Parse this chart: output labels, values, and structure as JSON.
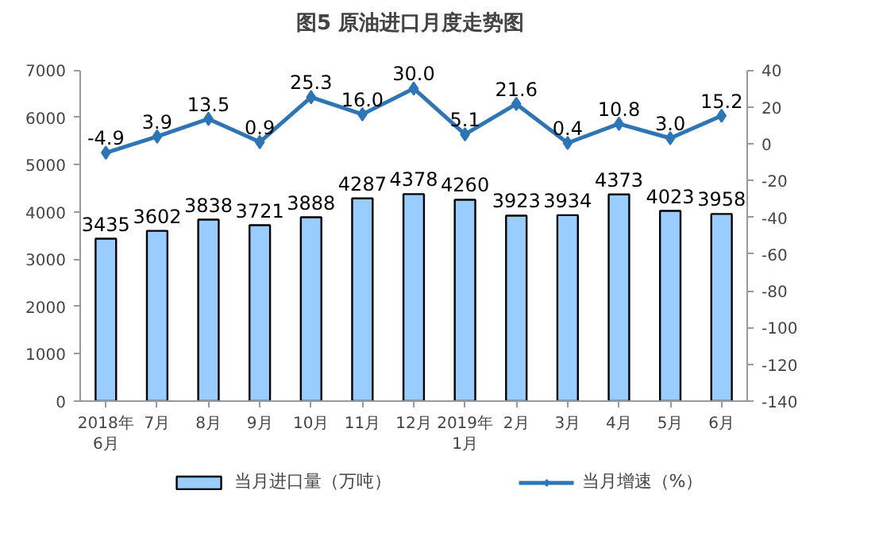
{
  "chart_data": {
    "type": "bar",
    "title": "图5  原油进口月度走势图",
    "categories": [
      "2018年\n6月",
      "7月",
      "8月",
      "9月",
      "10月",
      "11月",
      "12月",
      "2019年\n1月",
      "2月",
      "3月",
      "4月",
      "5月",
      "6月"
    ],
    "series": [
      {
        "name": "当月进口量（万吨）",
        "color": "#99ccff",
        "values": [
          3435,
          3602,
          3838,
          3721,
          3888,
          4287,
          4378,
          4260,
          3923,
          3934,
          4373,
          4023,
          3958
        ]
      },
      {
        "name": "当月增速（%）",
        "type": "line",
        "axis": "y2",
        "color": "#2e75b6",
        "marker": "diamond",
        "values": [
          -4.9,
          3.9,
          13.5,
          0.9,
          25.3,
          16.0,
          30.0,
          5.1,
          21.6,
          0.4,
          10.8,
          3.0,
          15.2
        ],
        "value_labels": [
          "-4.9",
          "3.9",
          "13.5",
          "0.9",
          "25.3",
          "16.0",
          "30.0",
          "5.1",
          "21.6",
          "0.4",
          "10.8",
          "3.0",
          "15.2"
        ]
      }
    ],
    "ylim": [
      0,
      7000
    ],
    "yticks": [
      0,
      1000,
      2000,
      3000,
      4000,
      5000,
      6000,
      7000
    ],
    "y2lim": [
      -140,
      40
    ],
    "y2ticks": [
      -140,
      -120,
      -100,
      -80,
      -60,
      -40,
      -20,
      0,
      20,
      40
    ],
    "data_labels": true,
    "grid": false,
    "legend": "bottom"
  }
}
